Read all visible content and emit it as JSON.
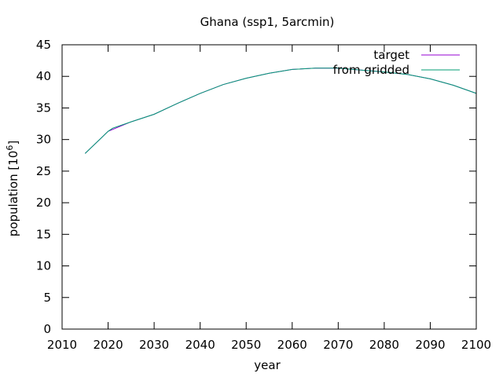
{
  "chart_data": {
    "type": "line",
    "title": "Ghana (ssp1, 5arcmin)",
    "xlabel": "year",
    "ylabel": "population [10",
    "ylabel_superscript": "6",
    "ylabel_suffix": "]",
    "xlim": [
      2010,
      2100
    ],
    "ylim": [
      0,
      45
    ],
    "xticks": [
      2010,
      2020,
      2030,
      2040,
      2050,
      2060,
      2070,
      2080,
      2090,
      2100
    ],
    "yticks": [
      0,
      5,
      10,
      15,
      20,
      25,
      30,
      35,
      40,
      45
    ],
    "grid": false,
    "legend_position": "top-right",
    "series": [
      {
        "name": "target",
        "color": "#9400d3",
        "x": [
          2015,
          2020,
          2025,
          2030,
          2035,
          2040,
          2045,
          2050,
          2055,
          2060,
          2065,
          2070,
          2075,
          2080,
          2085,
          2090,
          2095,
          2100
        ],
        "y": [
          27.8,
          31.3,
          32.8,
          34.0,
          35.7,
          37.3,
          38.7,
          39.7,
          40.5,
          41.1,
          41.3,
          41.3,
          41.0,
          40.7,
          40.3,
          39.6,
          38.6,
          37.3
        ]
      },
      {
        "name": "from gridded",
        "color": "#009e73",
        "x": [
          2015,
          2020,
          2021,
          2025,
          2030,
          2035,
          2040,
          2045,
          2050,
          2055,
          2060,
          2065,
          2070,
          2075,
          2080,
          2085,
          2090,
          2095,
          2100
        ],
        "y": [
          27.8,
          31.3,
          31.8,
          32.8,
          34.0,
          35.7,
          37.3,
          38.7,
          39.7,
          40.5,
          41.1,
          41.3,
          41.3,
          41.0,
          40.7,
          40.3,
          39.6,
          38.6,
          37.3
        ]
      }
    ]
  }
}
